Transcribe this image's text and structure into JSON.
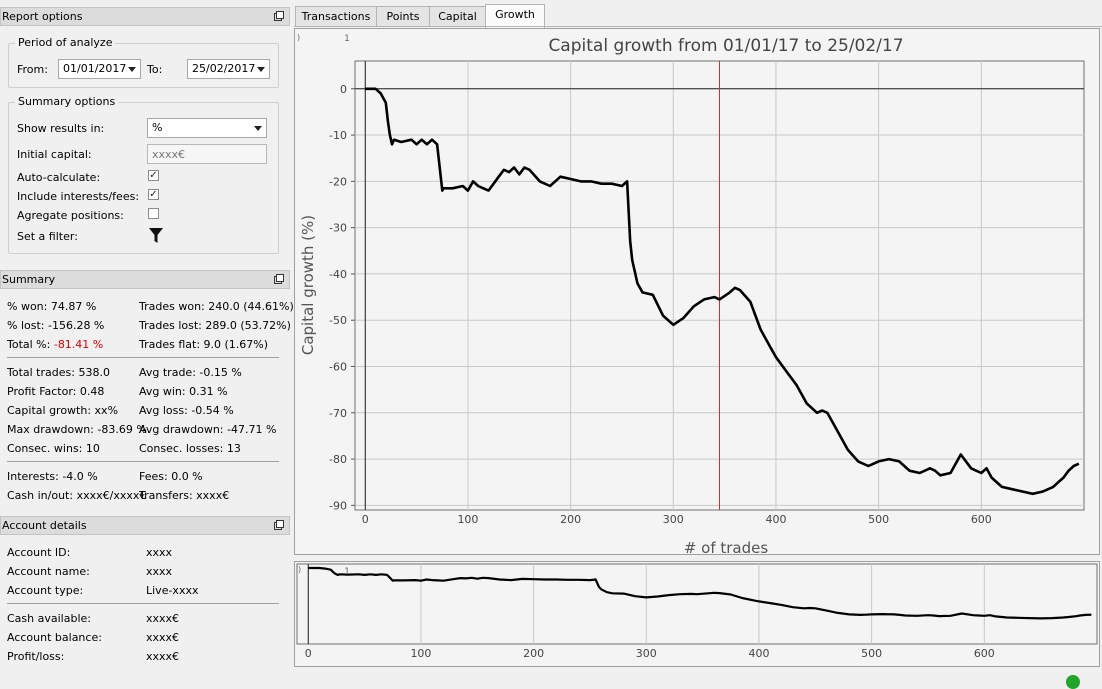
{
  "report_options": {
    "title": "Report options",
    "period": {
      "title": "Period of analyze",
      "from_label": "From:",
      "from_value": "01/01/2017",
      "to_label": "To:",
      "to_value": "25/02/2017"
    },
    "summary_options": {
      "title": "Summary options",
      "show_results_label": "Show results in:",
      "show_results_value": "%",
      "initial_capital_label": "Initial capital:",
      "initial_capital_placeholder": "xxxx€",
      "auto_calc_label": "Auto-calculate:",
      "auto_calc_checked": true,
      "include_fees_label": "Include interests/fees:",
      "include_fees_checked": true,
      "aggregate_label": "Agregate positions:",
      "aggregate_checked": false,
      "filter_label": "Set a filter:"
    }
  },
  "summary": {
    "title": "Summary",
    "won": "% won: 74.87 %",
    "lost": "% lost: -156.28 %",
    "total_label": "Total %: ",
    "total_value": "-81.41 %",
    "trades_won": "Trades won: 240.0 (44.61%)",
    "trades_lost": "Trades lost: 289.0 (53.72%)",
    "trades_flat": "Trades flat: 9.0 (1.67%)",
    "total_trades": "Total trades: 538.0",
    "profit_factor": "Profit Factor: 0.48",
    "capital_growth": "Capital growth: xx%",
    "max_drawdown": "Max drawdown: -83.69 %",
    "consec_wins": "Consec. wins: 10",
    "avg_trade": "Avg trade: -0.15 %",
    "avg_win": "Avg win: 0.31 %",
    "avg_loss": "Avg loss: -0.54 %",
    "avg_drawdown": "Avg drawdown: -47.71 %",
    "consec_losses": "Consec. losses: 13",
    "interests": "Interests: -4.0 %",
    "fees": "Fees: 0.0 %",
    "cash_in_out": "Cash in/out: xxxx€/xxxx€",
    "transfers": "Transfers: xxxx€"
  },
  "account": {
    "title": "Account details",
    "rows": [
      {
        "label": "Account ID:",
        "value": "xxxx"
      },
      {
        "label": "Account name:",
        "value": "xxxx"
      },
      {
        "label": "Account type:",
        "value": "Live-xxxx"
      }
    ],
    "rows2": [
      {
        "label": "Cash available:",
        "value": "xxxx€"
      },
      {
        "label": "Account balance:",
        "value": "xxxx€"
      },
      {
        "label": "Profit/loss:",
        "value": "xxxx€"
      }
    ]
  },
  "tabs": [
    "Transactions",
    "Points",
    "Capital",
    "Growth"
  ],
  "active_tab": "Growth",
  "colors": {
    "negative": "#e00000",
    "curve": "#000000",
    "marker_line": "#d03030",
    "status": "#21a52b"
  },
  "chart_data": [
    {
      "type": "line",
      "title": "Capital growth from 01/01/17 to 25/02/17",
      "xlabel": "# of trades",
      "ylabel": "Capital growth (%)",
      "xlim": [
        -10,
        700
      ],
      "ylim": [
        -91,
        6
      ],
      "xticks": [
        0,
        100,
        200,
        300,
        400,
        500,
        600
      ],
      "yticks": [
        0,
        -10,
        -20,
        -30,
        -40,
        -50,
        -60,
        -70,
        -80,
        -90
      ],
      "corner_labels": [
        ")",
        "1"
      ],
      "grid": true,
      "marker_x": 345,
      "x": [
        0,
        5,
        10,
        15,
        20,
        22,
        24,
        26,
        28,
        35,
        45,
        50,
        55,
        60,
        65,
        70,
        75,
        76,
        85,
        95,
        100,
        105,
        110,
        115,
        120,
        125,
        130,
        135,
        140,
        145,
        150,
        155,
        160,
        170,
        180,
        190,
        200,
        210,
        220,
        230,
        240,
        250,
        255,
        258,
        260,
        265,
        270,
        280,
        290,
        300,
        310,
        320,
        330,
        340,
        345,
        355,
        360,
        365,
        375,
        385,
        395,
        400,
        410,
        420,
        430,
        440,
        445,
        450,
        460,
        470,
        480,
        490,
        495,
        500,
        510,
        520,
        525,
        530,
        540,
        550,
        555,
        560,
        570,
        580,
        590,
        595,
        600,
        605,
        610,
        620,
        630,
        640,
        650,
        660,
        670,
        675,
        680,
        685,
        690,
        695
      ],
      "y": [
        0,
        0,
        0,
        -1,
        -3,
        -7,
        -10,
        -12,
        -11,
        -11.5,
        -11,
        -12,
        -11,
        -12,
        -11,
        -12,
        -22,
        -21.5,
        -21.5,
        -21,
        -22,
        -20,
        -21,
        -21.5,
        -22,
        -20.5,
        -19,
        -17.5,
        -18,
        -17,
        -18.5,
        -17,
        -17.5,
        -20,
        -21,
        -19,
        -19.5,
        -20,
        -20,
        -20.5,
        -20.5,
        -21,
        -20,
        -33,
        -37,
        -42,
        -44,
        -44.5,
        -49,
        -51,
        -49.5,
        -47,
        -45.5,
        -45,
        -45.5,
        -44,
        -43,
        -43.5,
        -46,
        -52,
        -56,
        -58,
        -61,
        -64,
        -68,
        -70,
        -69.5,
        -70,
        -74,
        -78,
        -80.5,
        -81.5,
        -81,
        -80.5,
        -80,
        -80.5,
        -81.5,
        -82.5,
        -83,
        -82,
        -82.5,
        -83.5,
        -83,
        -79,
        -82,
        -82.5,
        -83,
        -82,
        -84,
        -86,
        -86.5,
        -87,
        -87.5,
        -87,
        -86,
        -85,
        -84,
        -82.5,
        -81.5,
        -81
      ]
    },
    {
      "type": "line",
      "title": "",
      "xlabel": "",
      "ylabel": "",
      "xlim": [
        -10,
        700
      ],
      "ylim": [
        -95,
        5
      ],
      "xticks": [
        0,
        100,
        200,
        300,
        400,
        500,
        600
      ],
      "corner_labels": [
        ")",
        "1"
      ],
      "grid": true
    }
  ]
}
